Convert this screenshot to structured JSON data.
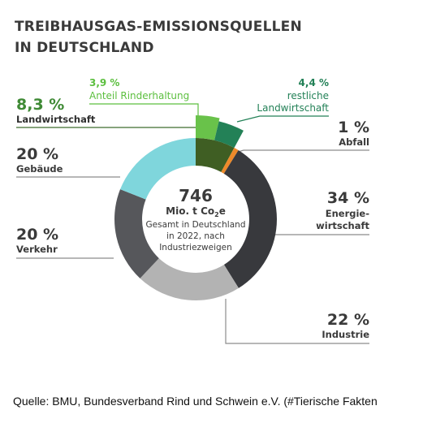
{
  "chart_data": {
    "type": "pie",
    "title_lines": [
      "TREIBHAUSGAS-EMISSIONSQUELLEN",
      "IN DEUTSCHLAND"
    ],
    "center": {
      "value": "746",
      "unit": "Mio. t Co",
      "unit_sub": "2",
      "unit_suffix": "e",
      "lines": [
        "Gesamt in Deutschland",
        "in 2022, nach",
        "Industriezweigen"
      ]
    },
    "slices": [
      {
        "label": "Landwirtschaft",
        "value_label": "8,3 %",
        "value": 8.3,
        "color": "#3f5e23"
      },
      {
        "label": "Abfall",
        "value_label": "1 %",
        "value": 1,
        "color": "#ee8a2a"
      },
      {
        "label": "Energie-wirtschaft",
        "label_lines": [
          "Energie-",
          "wirtschaft"
        ],
        "value_label": "34 %",
        "value": 34,
        "color": "#38393d"
      },
      {
        "label": "Industrie",
        "value_label": "22 %",
        "value": 22,
        "color": "#b3b3b3"
      },
      {
        "label": "Verkehr",
        "value_label": "20 %",
        "value": 20,
        "color": "#56575b"
      },
      {
        "label": "Gebäude",
        "value_label": "20 %",
        "value": 20,
        "color": "#7fd6dc"
      }
    ],
    "sub_slices": [
      {
        "label": "Anteil Rinderhaltung",
        "value_label": "3,9 %",
        "value": 3.9,
        "color": "#69c24a"
      },
      {
        "label_lines": [
          "restliche",
          "Landwirtschaft"
        ],
        "value_label": "4,4 %",
        "value": 4.4,
        "color": "#238157"
      }
    ],
    "colors": {
      "green_text": "#3f8a35",
      "light_green_text": "#5cbf3f",
      "text": "#3a3a3a",
      "leader": "#8c8c8c"
    }
  },
  "source": "Quelle: BMU, Bundesverband Rind und Schwein e.V. (#Tierische Fakten"
}
